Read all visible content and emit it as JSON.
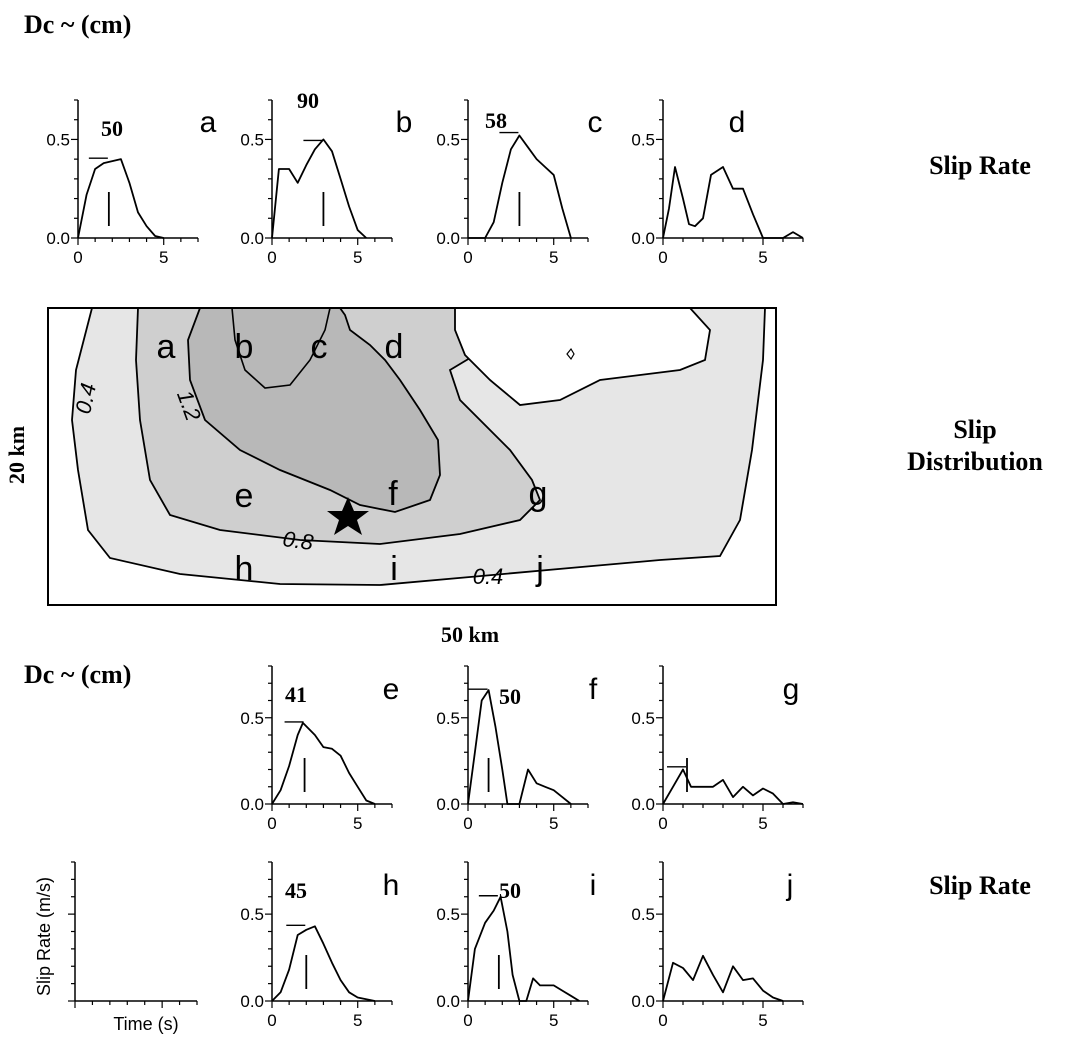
{
  "headings": {
    "dc_top": "Dc ~   (cm)",
    "dc_bottom": "Dc ~   (cm)",
    "slip_rate_top": "Slip Rate",
    "slip_rate_bottom": "Slip Rate",
    "slip_distribution_line1": "Slip",
    "slip_distribution_line2": "Distribution"
  },
  "colors": {
    "ink": "#000000",
    "shade_light": "#e6e6e6",
    "shade_mid": "#cfcfcf",
    "shade_dark": "#b8b8b8",
    "background": "#ffffff"
  },
  "chart_data": [
    {
      "type": "line",
      "panel": "a",
      "dc": "50",
      "x": [
        0,
        0.5,
        1,
        1.5,
        2,
        2.5,
        3,
        3.5,
        4,
        4.5,
        5
      ],
      "values": [
        0,
        0.22,
        0.35,
        0.38,
        0.39,
        0.4,
        0.28,
        0.13,
        0.06,
        0.01,
        0
      ],
      "dc_time": 1.8,
      "dc_level": 0.4,
      "xlim": [
        0,
        7
      ],
      "ylim": [
        0,
        0.7
      ],
      "xticks": [
        "0",
        "5"
      ],
      "yticks": [
        "0.0",
        "0.5"
      ]
    },
    {
      "type": "line",
      "panel": "b",
      "dc": "90",
      "x": [
        0,
        0.4,
        1,
        1.5,
        2,
        2.5,
        3,
        3.5,
        4,
        4.5,
        5,
        5.5
      ],
      "values": [
        0,
        0.35,
        0.35,
        0.28,
        0.37,
        0.45,
        0.5,
        0.44,
        0.3,
        0.16,
        0.04,
        0
      ],
      "dc_time": 3.0,
      "dc_level": 0.49,
      "xlim": [
        0,
        7
      ],
      "ylim": [
        0,
        0.7
      ],
      "xticks": [
        "0",
        "5"
      ],
      "yticks": [
        "0.0",
        "0.5"
      ]
    },
    {
      "type": "line",
      "panel": "c",
      "dc": "58",
      "x": [
        0,
        1,
        1.5,
        2,
        2.5,
        3,
        3.5,
        4,
        4.5,
        5,
        5.5,
        6
      ],
      "values": [
        0,
        0.0,
        0.08,
        0.28,
        0.45,
        0.52,
        0.46,
        0.4,
        0.36,
        0.32,
        0.15,
        0.0
      ],
      "dc_time": 3.0,
      "dc_level": 0.53,
      "xlim": [
        0,
        7
      ],
      "ylim": [
        0,
        0.7
      ],
      "xticks": [
        "0",
        "5"
      ],
      "yticks": [
        "0.0",
        "0.5"
      ]
    },
    {
      "type": "line",
      "panel": "d",
      "dc": "",
      "x": [
        0,
        0.3,
        0.6,
        1.0,
        1.3,
        1.6,
        2.0,
        2.4,
        3.0,
        3.5,
        4.0,
        4.5,
        5.0,
        6.0,
        6.5,
        7.0
      ],
      "values": [
        0,
        0.15,
        0.36,
        0.2,
        0.07,
        0.06,
        0.1,
        0.32,
        0.36,
        0.25,
        0.25,
        0.12,
        0.0,
        0.0,
        0.03,
        0.0
      ],
      "xlim": [
        0,
        7
      ],
      "ylim": [
        0,
        0.7
      ],
      "xticks": [
        "0",
        "5"
      ],
      "yticks": [
        "0.0",
        "0.5"
      ]
    },
    {
      "type": "line",
      "panel": "e",
      "dc": "41",
      "x": [
        0,
        0.5,
        1,
        1.5,
        1.8,
        2.5,
        3,
        3.5,
        4,
        4.5,
        5,
        5.5,
        6
      ],
      "values": [
        0,
        0.08,
        0.22,
        0.4,
        0.47,
        0.4,
        0.33,
        0.32,
        0.28,
        0.18,
        0.1,
        0.02,
        0
      ],
      "dc_time": 1.9,
      "dc_level": 0.47,
      "xlim": [
        0,
        7
      ],
      "ylim": [
        0,
        0.8
      ],
      "xticks": [
        "0",
        "5"
      ],
      "yticks": [
        "0.0",
        "0.5"
      ]
    },
    {
      "type": "line",
      "panel": "f",
      "dc": "50",
      "x": [
        0,
        0.4,
        0.8,
        1.2,
        1.6,
        2.0,
        2.3,
        2.6,
        3.0,
        3.5,
        4.0,
        4.5,
        5.0,
        5.5,
        6.0
      ],
      "values": [
        0,
        0.3,
        0.6,
        0.66,
        0.45,
        0.2,
        0.0,
        0.0,
        0.0,
        0.2,
        0.12,
        0.1,
        0.08,
        0.04,
        0
      ],
      "dc_time": 1.2,
      "dc_level": 0.66,
      "xlim": [
        0,
        7
      ],
      "ylim": [
        0,
        0.8
      ],
      "xticks": [
        "0",
        "5"
      ],
      "yticks": [
        "0.0",
        "0.5"
      ]
    },
    {
      "type": "line",
      "panel": "g",
      "dc": "",
      "x": [
        0,
        0.5,
        1.0,
        1.4,
        2.0,
        2.5,
        3.0,
        3.5,
        4.0,
        4.5,
        5.0,
        5.5,
        6.0,
        6.5,
        7.0
      ],
      "values": [
        0,
        0.1,
        0.2,
        0.1,
        0.1,
        0.1,
        0.14,
        0.04,
        0.1,
        0.05,
        0.09,
        0.06,
        0.0,
        0.01,
        0
      ],
      "dc_time": 1.2,
      "dc_level": 0.21,
      "xlim": [
        0,
        7
      ],
      "ylim": [
        0,
        0.8
      ],
      "xticks": [
        "0",
        "5"
      ],
      "yticks": [
        "0.0",
        "0.5"
      ]
    },
    {
      "type": "line",
      "panel": "h",
      "dc": "45",
      "x": [
        0,
        0.5,
        1,
        1.5,
        2,
        2.5,
        3,
        3.5,
        4,
        4.5,
        5,
        5.5,
        6
      ],
      "values": [
        0,
        0.05,
        0.18,
        0.38,
        0.41,
        0.43,
        0.33,
        0.22,
        0.12,
        0.05,
        0.02,
        0.01,
        0
      ],
      "dc_time": 2.0,
      "dc_level": 0.43,
      "xlim": [
        0,
        7
      ],
      "ylim": [
        0,
        0.8
      ],
      "xticks": [
        "0",
        "5"
      ],
      "yticks": [
        "0.0",
        "0.5"
      ]
    },
    {
      "type": "line",
      "panel": "i",
      "dc": "50",
      "x": [
        0,
        0.4,
        1.0,
        1.5,
        1.9,
        2.3,
        2.6,
        3.0,
        3.4,
        3.8,
        4.2,
        4.6,
        5.0,
        5.5,
        6.0,
        6.5
      ],
      "values": [
        0,
        0.3,
        0.45,
        0.52,
        0.6,
        0.4,
        0.15,
        0.0,
        0.0,
        0.13,
        0.09,
        0.09,
        0.09,
        0.06,
        0.03,
        0
      ],
      "dc_time": 1.8,
      "dc_level": 0.6,
      "xlim": [
        0,
        7
      ],
      "ylim": [
        0,
        0.8
      ],
      "xticks": [
        "0",
        "5"
      ],
      "yticks": [
        "0.0",
        "0.5"
      ]
    },
    {
      "type": "line",
      "panel": "j",
      "dc": "",
      "x": [
        0,
        0.5,
        1.0,
        1.5,
        2.0,
        2.5,
        3.0,
        3.5,
        4.0,
        4.5,
        5.0,
        5.5,
        6.0
      ],
      "values": [
        0,
        0.22,
        0.19,
        0.12,
        0.26,
        0.15,
        0.05,
        0.2,
        0.12,
        0.13,
        0.06,
        0.02,
        0
      ],
      "xlim": [
        0,
        7
      ],
      "ylim": [
        0,
        0.8
      ],
      "xticks": [
        "0",
        "5"
      ],
      "yticks": [
        "0.0",
        "0.5"
      ]
    },
    {
      "type": "line",
      "panel": "axis-key",
      "xlabel": "Time (s)",
      "ylabel": "Slip Rate (m/s)",
      "xlim": [
        0,
        7
      ],
      "ylim": [
        0,
        0.8
      ]
    },
    {
      "type": "contour",
      "panel": "slip-distribution",
      "contour_labels": [
        "1.2",
        "0.4",
        "0.8",
        "0.4"
      ],
      "point_labels": [
        "a",
        "b",
        "c",
        "d",
        "e",
        "f",
        "g",
        "h",
        "i",
        "j"
      ],
      "xlabel": "50 km",
      "ylabel": "20 km",
      "hypocenter": "star"
    }
  ]
}
